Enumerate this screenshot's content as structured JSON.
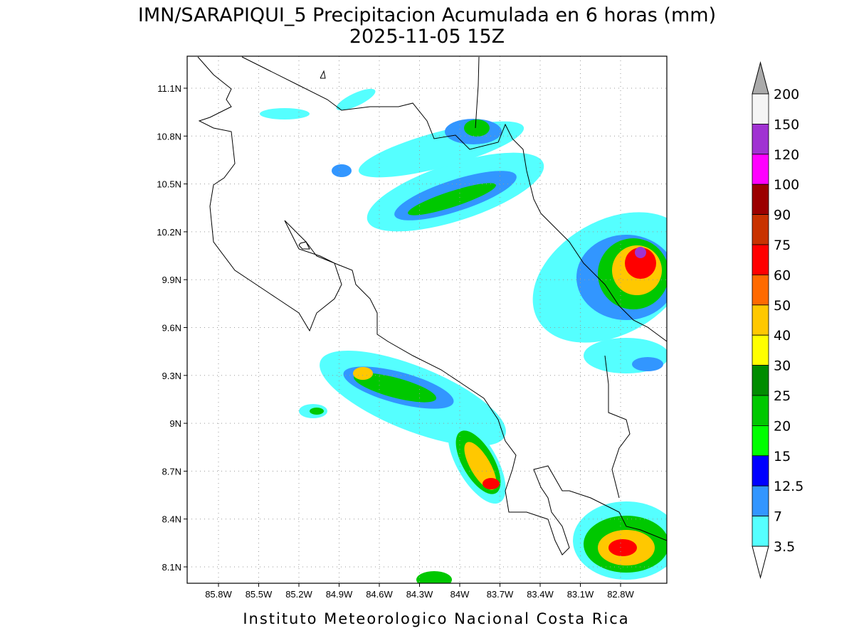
{
  "title": "IMN/SARAPIQUI_5 Precipitacion Acumulada en 6 horas (mm)",
  "subtitle": "2025-11-05 15Z",
  "map": {
    "lon_ticks": [
      "85.8W",
      "85.5W",
      "85.2W",
      "84.9W",
      "84.6W",
      "84.3W",
      "84W",
      "83.7W",
      "83.4W",
      "83.1W",
      "82.8W"
    ],
    "lat_ticks": [
      "11.1N",
      "10.8N",
      "10.5N",
      "10.2N",
      "9.9N",
      "9.6N",
      "9.3N",
      "9N",
      "8.7N",
      "8.4N",
      "8.1N"
    ]
  },
  "colorbar": {
    "levels": [
      200,
      150,
      120,
      100,
      90,
      75,
      60,
      50,
      40,
      30,
      25,
      20,
      15,
      12.5,
      7,
      3.5
    ],
    "colors": [
      "#f5f5f5",
      "#a032d2",
      "#ff00ff",
      "#9b0000",
      "#c83200",
      "#ff0000",
      "#ff6a00",
      "#ffc800",
      "#ffff00",
      "#008c00",
      "#00c800",
      "#00ff00",
      "#0000ff",
      "#3296ff",
      "#55ffff"
    ],
    "over_color": "#aaaaaa",
    "under_color": "#ffffff"
  },
  "footer": "Instituto Meteorologico Nacional Costa Rica"
}
